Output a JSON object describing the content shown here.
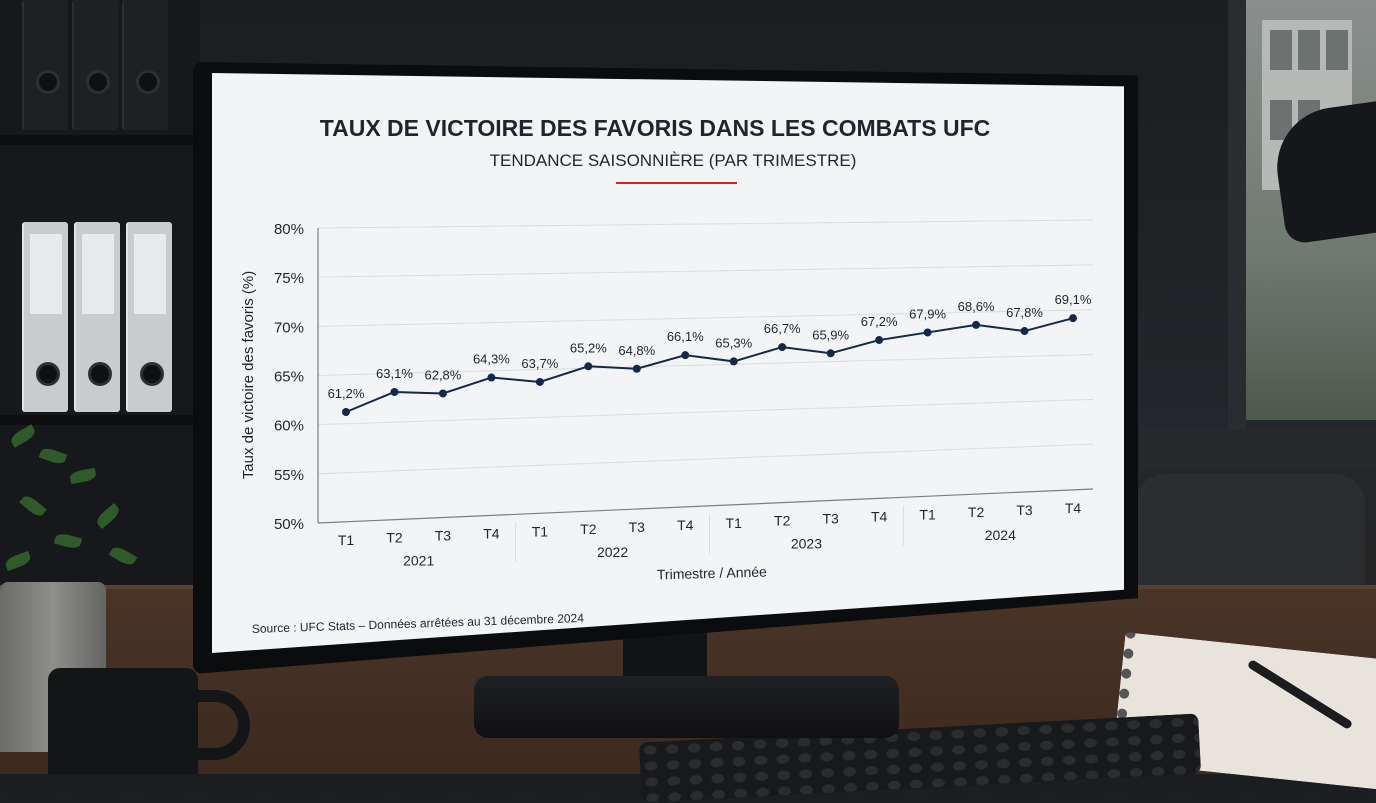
{
  "colors": {
    "line": "#13294b",
    "accent": "#d32222",
    "grid": "#d9dce0",
    "axis": "#7a7f86",
    "text": "#1f2530"
  },
  "chart_data": {
    "type": "line",
    "title": "TAUX DE VICTOIRE DES FAVORIS DANS LES COMBATS UFC",
    "subtitle": "TENDANCE SAISONNIÈRE (PAR TRIMESTRE)",
    "xlabel": "Trimestre / Année",
    "ylabel": "Taux de victoire des favoris (%)",
    "ylim": [
      50,
      80
    ],
    "yticks": [
      "50%",
      "55%",
      "60%",
      "65%",
      "70%",
      "75%",
      "80%"
    ],
    "grid": true,
    "categories": [
      "T1",
      "T2",
      "T3",
      "T4",
      "T1",
      "T2",
      "T3",
      "T4",
      "T1",
      "T2",
      "T3",
      "T4",
      "T1",
      "T2",
      "T3",
      "T4"
    ],
    "years": [
      "2021",
      "2022",
      "2023",
      "2024"
    ],
    "values": [
      61.2,
      63.1,
      62.8,
      64.3,
      63.7,
      65.2,
      64.8,
      66.1,
      65.3,
      66.7,
      65.9,
      67.2,
      67.9,
      68.6,
      67.8,
      69.1
    ],
    "value_labels": [
      "61,2%",
      "63,1%",
      "62,8%",
      "64,3%",
      "63,7%",
      "65,2%",
      "64,8%",
      "66,1%",
      "65,3%",
      "66,7%",
      "65,9%",
      "67,2%",
      "67,9%",
      "68,6%",
      "67,8%",
      "69,1%"
    ],
    "source": "Source : UFC Stats – Données arrêtées au 31 décembre 2024"
  }
}
